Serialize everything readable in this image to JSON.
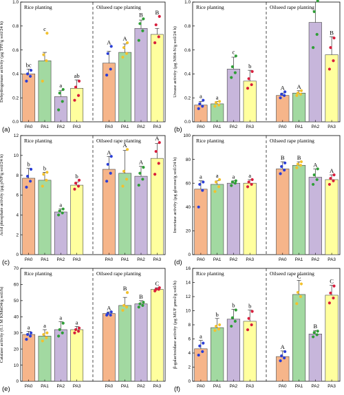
{
  "figure": {
    "colors": {
      "PA0": "#f6b58a",
      "PA1": "#a2d9a1",
      "PA2": "#c7b6db",
      "PA3": "#ffff9e",
      "rice_dots": [
        "#2b3fd6",
        "#f2c12e",
        "#2f9e37",
        "#d81e3c"
      ],
      "rape_dots": [
        "#2b3fd6",
        "#f2c12e",
        "#2f9e37",
        "#d81e3c"
      ]
    }
  },
  "chart_data": [
    {
      "type": "bar",
      "panel": "(a)",
      "ylabel": "Dehydrogenase activity (μg TPF/g soil/24 h)",
      "categories": [
        "PA0",
        "PA1",
        "PA2",
        "PA3",
        "PA0",
        "PA1",
        "PA2",
        "PA3"
      ],
      "groups": [
        "Rice planting",
        "Oilseed rape planting"
      ],
      "values": [
        0.4,
        0.51,
        0.21,
        0.28,
        0.49,
        0.58,
        0.78,
        0.73
      ],
      "errors": [
        0.04,
        0.07,
        0.05,
        0.07,
        0.1,
        0.07,
        0.07,
        0.05
      ],
      "letters": [
        "bc",
        "c",
        "a",
        "ab",
        "A",
        "A",
        "B",
        "B"
      ],
      "points": [
        [
          0.34,
          0.38,
          0.4,
          0.43
        ],
        [
          0.34,
          0.51,
          0.56,
          0.74
        ],
        [
          0.1,
          0.17,
          0.24,
          0.27
        ],
        [
          0.18,
          0.22,
          0.29,
          0.34
        ],
        [
          0.39,
          0.44,
          0.57,
          0.63
        ],
        [
          0.54,
          0.57,
          0.62,
          0.66
        ],
        [
          0.68,
          0.76,
          0.82,
          0.86
        ],
        [
          0.66,
          0.71,
          0.81,
          0.88
        ]
      ],
      "ylim": [
        0,
        1.0
      ],
      "yticks": [
        "0.0",
        "0.2",
        "0.4",
        "0.6",
        "0.8",
        "1.0"
      ]
    },
    {
      "type": "bar",
      "panel": "(b)",
      "ylabel": "Urease activity (μg NH4-N/g soil/24 h)",
      "categories": [
        "PA0",
        "PA1",
        "PA2",
        "PA3",
        "PA0",
        "PA1",
        "PA2",
        "PA3"
      ],
      "groups": [
        "Rice planting",
        "Oilseed rape planting"
      ],
      "values": [
        0.14,
        0.15,
        0.44,
        0.34,
        0.22,
        0.24,
        0.83,
        0.56
      ],
      "errors": [
        0.03,
        0.02,
        0.1,
        0.09,
        0.02,
        0.02,
        0.17,
        0.15
      ],
      "letters": [
        "a",
        "a",
        "c",
        "b",
        "A",
        "A",
        "C",
        "B"
      ],
      "points": [
        [
          0.11,
          0.13,
          0.15,
          0.18
        ],
        [
          0.13,
          0.14,
          0.16,
          0.17
        ],
        [
          0.37,
          0.41,
          0.46,
          0.55
        ],
        [
          0.28,
          0.31,
          0.36,
          0.42
        ],
        [
          0.2,
          0.22,
          0.23,
          0.25
        ],
        [
          0.22,
          0.23,
          0.24,
          0.26
        ],
        [
          0.62,
          0.73,
          0.92,
          1.01
        ],
        [
          0.44,
          0.51,
          0.62,
          0.7
        ]
      ],
      "ylim": [
        0,
        1.0
      ],
      "yticks": [
        "0.0",
        "0.2",
        "0.4",
        "0.6",
        "0.8",
        "1.0"
      ]
    },
    {
      "type": "bar",
      "panel": "(c)",
      "ylabel": "Acid phosphate activity (μg pNP/g soil/24 h)",
      "categories": [
        "PA0",
        "PA1",
        "PA2",
        "PA3",
        "PA0",
        "PA1",
        "PA2",
        "PA3"
      ],
      "groups": [
        "Rice planting",
        "Oilseed rape planting"
      ],
      "values": [
        7.7,
        7.5,
        4.3,
        7.0,
        8.6,
        8.2,
        7.9,
        9.7
      ],
      "errors": [
        1.0,
        0.8,
        0.3,
        0.3,
        1.3,
        2.3,
        1.0,
        1.5
      ],
      "letters": [
        "b",
        "b",
        "a",
        "b",
        "A",
        "A",
        "A",
        "A"
      ],
      "points": [
        [
          6.8,
          7.4,
          7.9,
          8.6
        ],
        [
          6.9,
          7.5,
          8.1,
          8.3
        ],
        [
          4.0,
          4.2,
          4.4,
          4.6
        ],
        [
          6.6,
          6.9,
          7.2,
          7.5
        ],
        [
          7.4,
          8.2,
          9.1,
          9.9
        ],
        [
          6.9,
          7.6,
          8.4,
          10.6
        ],
        [
          7.0,
          7.6,
          8.2,
          8.8
        ],
        [
          8.1,
          9.2,
          10.4,
          11.3
        ]
      ],
      "ylim": [
        0,
        12
      ],
      "yticks": [
        "0",
        "2",
        "4",
        "6",
        "8",
        "10",
        "12"
      ]
    },
    {
      "type": "bar",
      "panel": "(d)",
      "ylabel": "Invertase activity (μg glucose/g soil/24 h)",
      "categories": [
        "PA0",
        "PA1",
        "PA2",
        "PA3",
        "PA0",
        "PA1",
        "PA2",
        "PA3"
      ],
      "groups": [
        "Rice planting",
        "Oilseed rape planting"
      ],
      "values": [
        55,
        59,
        60,
        60,
        72,
        75,
        65,
        63
      ],
      "errors": [
        7,
        3,
        2,
        3,
        6,
        3,
        7,
        4
      ],
      "letters": [
        "a",
        "a",
        "a",
        "a",
        "B",
        "B",
        "A",
        "A"
      ],
      "points": [
        [
          40,
          54,
          59,
          61
        ],
        [
          53,
          57,
          61,
          63
        ],
        [
          58,
          60,
          61,
          62
        ],
        [
          57,
          59,
          61,
          63
        ],
        [
          68,
          71,
          74,
          77
        ],
        [
          73,
          75,
          76,
          78
        ],
        [
          59,
          63,
          67,
          72
        ],
        [
          59,
          62,
          64,
          67
        ]
      ],
      "ylim": [
        0,
        100
      ],
      "yticks": [
        "0",
        "20",
        "40",
        "60",
        "80",
        "100"
      ]
    },
    {
      "type": "bar",
      "panel": "(e)",
      "ylabel": "Catalase activity (0.1 M KMnO4/g soil/h)",
      "categories": [
        "PA0",
        "PA1",
        "PA2",
        "PA3",
        "PA0",
        "PA1",
        "PA2",
        "PA3"
      ],
      "groups": [
        "Rice planting",
        "Oilseed rape planting"
      ],
      "values": [
        29,
        28,
        32,
        32,
        42,
        47,
        48,
        57
      ],
      "errors": [
        2,
        4,
        5,
        2,
        1,
        5,
        2,
        1
      ],
      "letters": [
        "a",
        "a",
        "a",
        "a",
        "A",
        "B",
        "B",
        "C"
      ],
      "points": [
        [
          26,
          28,
          29,
          30
        ],
        [
          25,
          27,
          29,
          30
        ],
        [
          28,
          30,
          32,
          36
        ],
        [
          30,
          31,
          32,
          33
        ],
        [
          41,
          41,
          42,
          43
        ],
        [
          44,
          46,
          47,
          55
        ],
        [
          46,
          47,
          48,
          49
        ],
        [
          56,
          57,
          57,
          58
        ]
      ],
      "ylim": [
        0,
        70
      ],
      "yticks": [
        "0",
        "10",
        "20",
        "30",
        "40",
        "50",
        "60",
        "70"
      ]
    },
    {
      "type": "bar",
      "panel": "(f)",
      "ylabel": "β-galactosidase activity (μg MUF μmol/g soil/h)",
      "categories": [
        "PA0",
        "PA1",
        "PA2",
        "PA3",
        "PA0",
        "PA1",
        "PA2",
        "PA3"
      ],
      "groups": [
        "Rice planting",
        "Oilseed rape planting"
      ],
      "values": [
        4.6,
        7.6,
        8.8,
        8.5,
        3.5,
        12.3,
        6.7,
        12.2
      ],
      "errors": [
        1.2,
        1.3,
        1.4,
        1.6,
        0.8,
        2.0,
        0.5,
        1.4
      ],
      "letters": [
        "a",
        "b",
        "b",
        "b",
        "A",
        "C",
        "B",
        "C"
      ],
      "points": [
        [
          3.7,
          4.2,
          5.0,
          5.4
        ],
        [
          7.2,
          7.4,
          7.8,
          8.0
        ],
        [
          7.8,
          8.5,
          9.0,
          10.1
        ],
        [
          7.3,
          8.0,
          8.9,
          9.9
        ],
        [
          2.9,
          3.3,
          3.6,
          4.2
        ],
        [
          11.0,
          12.0,
          12.6,
          13.8
        ],
        [
          6.3,
          6.6,
          6.9,
          7.1
        ],
        [
          11.1,
          11.8,
          12.5,
          13.5
        ]
      ],
      "ylim": [
        0,
        16
      ],
      "yticks": [
        "0",
        "2",
        "4",
        "6",
        "8",
        "10",
        "12",
        "14",
        "16"
      ]
    }
  ]
}
